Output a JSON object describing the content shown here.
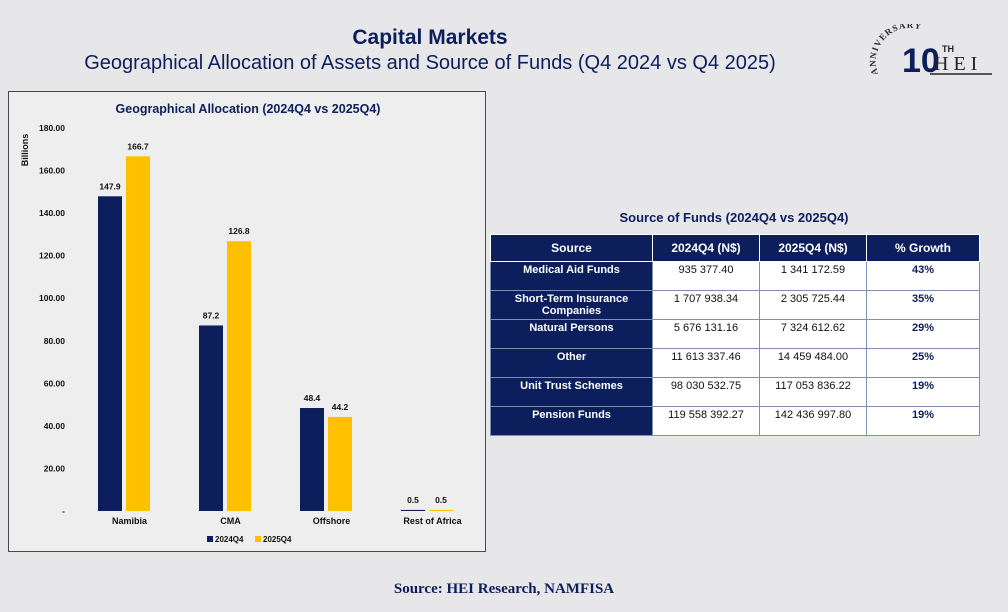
{
  "header": {
    "title": "Capital Markets",
    "subtitle": "Geographical Allocation of Assets and Source of Funds (Q4 2024 vs Q4 2025)"
  },
  "logo": {
    "anniversary_text": "ANNIVERSARY",
    "number": "10",
    "suffix": "TH",
    "brand": "HEI"
  },
  "chart_data": {
    "type": "bar",
    "title": "Geographical Allocation (2024Q4 vs 2025Q4)",
    "ylabel": "Billions",
    "xlabel": "",
    "categories": [
      "Namibia",
      "CMA",
      "Offshore",
      "Rest of Africa"
    ],
    "series": [
      {
        "name": "2024Q4",
        "color": "#0c1f5c",
        "values": [
          147.9,
          87.2,
          48.4,
          0.5
        ]
      },
      {
        "name": "2025Q4",
        "color": "#ffc000",
        "values": [
          166.7,
          126.8,
          44.2,
          0.5
        ]
      }
    ],
    "ylim": [
      0,
      180
    ],
    "yticks": [
      "-",
      "20.00",
      "40.00",
      "60.00",
      "80.00",
      "100.00",
      "120.00",
      "140.00",
      "160.00",
      "180.00"
    ],
    "grid": false,
    "legend": "bottom"
  },
  "table": {
    "title": "Source of Funds (2024Q4 vs 2025Q4)",
    "headers": [
      "Source",
      "2024Q4 (N$)",
      "2025Q4 (N$)",
      "% Growth"
    ],
    "rows": [
      [
        "Medical Aid Funds",
        "935 377.40",
        "1 341 172.59",
        "43%"
      ],
      [
        "Short-Term Insurance Companies",
        "1 707 938.34",
        "2 305 725.44",
        "35%"
      ],
      [
        "Natural Persons",
        "5 676 131.16",
        "7 324 612.62",
        "29%"
      ],
      [
        "Other",
        "11 613 337.46",
        "14 459 484.00",
        "25%"
      ],
      [
        "Unit Trust Schemes",
        "98 030 532.75",
        "117 053 836.22",
        "19%"
      ],
      [
        "Pension Funds",
        "119 558 392.27",
        "142 436 997.80",
        "19%"
      ]
    ]
  },
  "footer": {
    "source": "Source: HEI Research, NAMFISA"
  }
}
